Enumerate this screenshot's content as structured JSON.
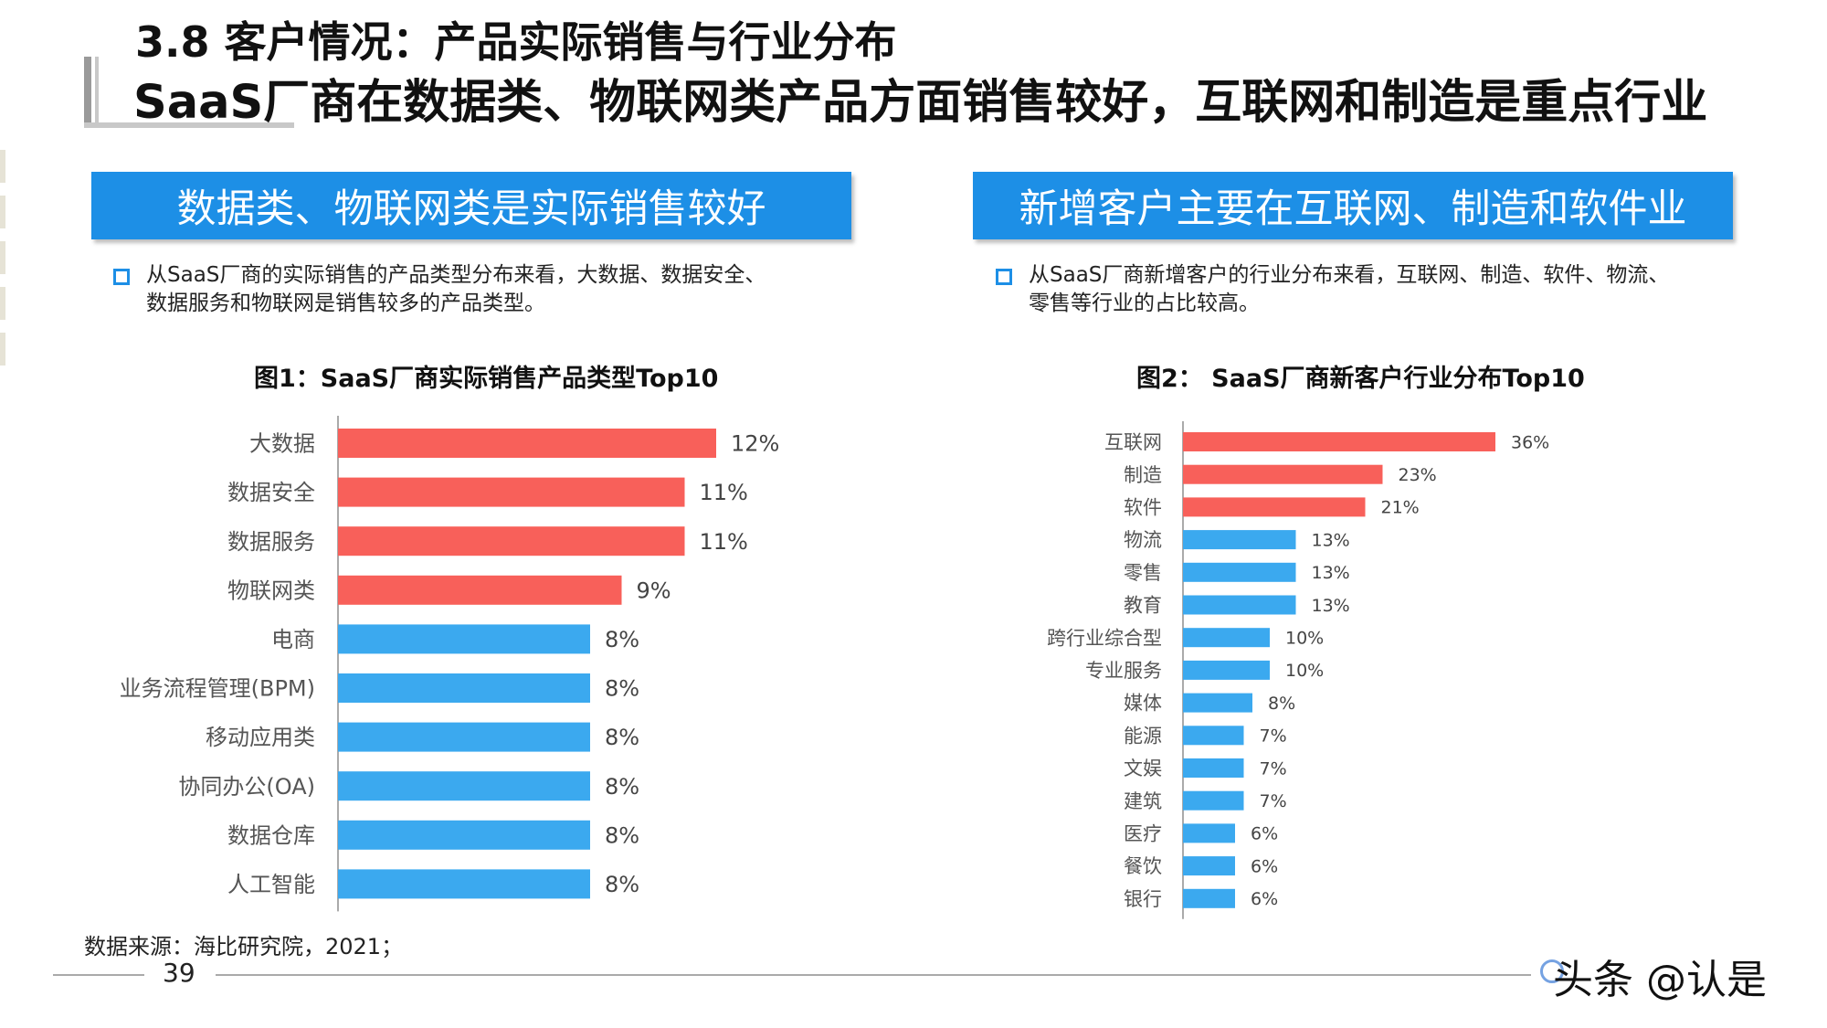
{
  "header": {
    "title_line1": "3.8 客户情况：产品实际销售与行业分布",
    "title_line2": "SaaS厂商在数据类、物联网类产品方面销售较好，互联网和制造是重点行业"
  },
  "left_panel": {
    "banner": "数据类、物联网类是实际销售较好",
    "bullet_line1": "从SaaS厂商的实际销售的产品类型分布来看，大数据、数据安全、",
    "bullet_line2": "数据服务和物联网是销售较多的产品类型。",
    "chart_title": "图1：SaaS厂商实际销售产品类型Top10"
  },
  "right_panel": {
    "banner": "新增客户主要在互联网、制造和软件业",
    "bullet_line1": "从SaaS厂商新增客户的行业分布来看，互联网、制造、软件、物流、",
    "bullet_line2": "零售等行业的占比较高。",
    "chart_title": "图2：  SaaS厂商新客户行业分布Top10"
  },
  "colors": {
    "highlight": "#f8605a",
    "normal": "#3ba9ef",
    "banner": "#1d8fe6",
    "axis": "#aaaaaa"
  },
  "chart_data": [
    {
      "type": "bar",
      "orientation": "horizontal",
      "title": "图1：SaaS厂商实际销售产品类型Top10",
      "categories": [
        "大数据",
        "数据安全",
        "数据服务",
        "物联网类",
        "电商",
        "业务流程管理(BPM)",
        "移动应用类",
        "协同办公(OA)",
        "数据仓库",
        "人工智能"
      ],
      "values": [
        12,
        11,
        11,
        9,
        8,
        8,
        8,
        8,
        8,
        8
      ],
      "value_labels": [
        "12%",
        "11%",
        "11%",
        "9%",
        "8%",
        "8%",
        "8%",
        "8%",
        "8%",
        "8%"
      ],
      "highlighted_count": 4,
      "value_unit": "%",
      "grid": false,
      "legend": "none"
    },
    {
      "type": "bar",
      "orientation": "horizontal",
      "title": "图2：  SaaS厂商新客户行业分布Top10",
      "categories": [
        "互联网",
        "制造",
        "软件",
        "物流",
        "零售",
        "教育",
        "跨行业综合型",
        "专业服务",
        "媒体",
        "能源",
        "文娱",
        "建筑",
        "医疗",
        "餐饮",
        "银行"
      ],
      "values": [
        36,
        23,
        21,
        13,
        13,
        13,
        10,
        10,
        8,
        7,
        7,
        7,
        6,
        6,
        6
      ],
      "value_labels": [
        "36%",
        "23%",
        "21%",
        "13%",
        "13%",
        "13%",
        "10%",
        "10%",
        "8%",
        "7%",
        "7%",
        "7%",
        "6%",
        "6%",
        "6%"
      ],
      "highlighted_count": 3,
      "value_unit": "%",
      "grid": false,
      "legend": "none"
    }
  ],
  "footer": {
    "source": "数据来源：海比研究院，2021；",
    "page_number": "39",
    "credit": "头条 @认是"
  }
}
